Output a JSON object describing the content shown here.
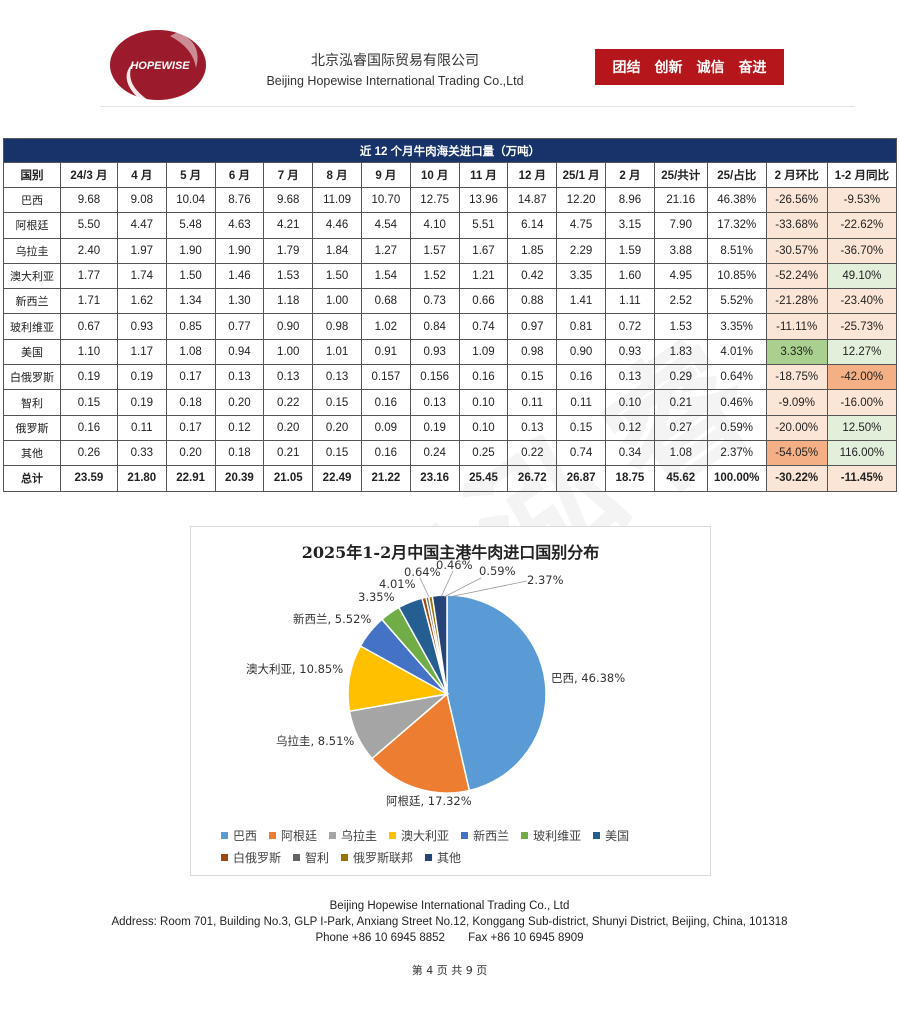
{
  "header": {
    "logo_text": "HOPEWISE",
    "company_cn": "北京泓睿国际贸易有限公司",
    "company_en": "Beijing Hopewise International Trading Co.,Ltd",
    "slogans": [
      "团结",
      "创新",
      "诚信",
      "奋进"
    ]
  },
  "table": {
    "title": "近 12 个月牛肉海关进口量（万吨）",
    "headers": [
      "国别",
      "24/3 月",
      "4 月",
      "5 月",
      "6 月",
      "7 月",
      "8 月",
      "9 月",
      "10 月",
      "11 月",
      "12 月",
      "25/1 月",
      "2 月",
      "25/共计",
      "25/占比",
      "2 月环比",
      "1-2 月同比"
    ],
    "rows": [
      {
        "name": "巴西",
        "values": [
          "9.68",
          "9.08",
          "10.04",
          "8.76",
          "9.68",
          "11.09",
          "10.70",
          "12.75",
          "13.96",
          "14.87",
          "12.20",
          "8.96",
          "21.16",
          "46.38%",
          "-26.56%",
          "-9.53%"
        ],
        "mom_color": "#fbe5d6",
        "yoy_color": "#fbe5d6"
      },
      {
        "name": "阿根廷",
        "values": [
          "5.50",
          "4.47",
          "5.48",
          "4.63",
          "4.21",
          "4.46",
          "4.54",
          "4.10",
          "5.51",
          "6.14",
          "4.75",
          "3.15",
          "7.90",
          "17.32%",
          "-33.68%",
          "-22.62%"
        ],
        "mom_color": "#fbe5d6",
        "yoy_color": "#fbe5d6"
      },
      {
        "name": "乌拉圭",
        "values": [
          "2.40",
          "1.97",
          "1.90",
          "1.90",
          "1.79",
          "1.84",
          "1.27",
          "1.57",
          "1.67",
          "1.85",
          "2.29",
          "1.59",
          "3.88",
          "8.51%",
          "-30.57%",
          "-36.70%"
        ],
        "mom_color": "#fbe5d6",
        "yoy_color": "#fbe5d6"
      },
      {
        "name": "澳大利亚",
        "values": [
          "1.77",
          "1.74",
          "1.50",
          "1.46",
          "1.53",
          "1.50",
          "1.54",
          "1.52",
          "1.21",
          "0.42",
          "3.35",
          "1.60",
          "4.95",
          "10.85%",
          "-52.24%",
          "49.10%"
        ],
        "mom_color": "#fbe5d6",
        "yoy_color": "#e2efda"
      },
      {
        "name": "新西兰",
        "values": [
          "1.71",
          "1.62",
          "1.34",
          "1.30",
          "1.18",
          "1.00",
          "0.68",
          "0.73",
          "0.66",
          "0.88",
          "1.41",
          "1.11",
          "2.52",
          "5.52%",
          "-21.28%",
          "-23.40%"
        ],
        "mom_color": "#fbe5d6",
        "yoy_color": "#fbe5d6"
      },
      {
        "name": "玻利维亚",
        "values": [
          "0.67",
          "0.93",
          "0.85",
          "0.77",
          "0.90",
          "0.98",
          "1.02",
          "0.84",
          "0.74",
          "0.97",
          "0.81",
          "0.72",
          "1.53",
          "3.35%",
          "-11.11%",
          "-25.73%"
        ],
        "mom_color": "#fbe5d6",
        "yoy_color": "#fbe5d6"
      },
      {
        "name": "美国",
        "values": [
          "1.10",
          "1.17",
          "1.08",
          "0.94",
          "1.00",
          "1.01",
          "0.91",
          "0.93",
          "1.09",
          "0.98",
          "0.90",
          "0.93",
          "1.83",
          "4.01%",
          "3.33%",
          "12.27%"
        ],
        "mom_color": "#a9d08e",
        "yoy_color": "#e2efda"
      },
      {
        "name": "白俄罗斯",
        "values": [
          "0.19",
          "0.19",
          "0.17",
          "0.13",
          "0.13",
          "0.13",
          "0.157",
          "0.156",
          "0.16",
          "0.15",
          "0.16",
          "0.13",
          "0.29",
          "0.64%",
          "-18.75%",
          "-42.00%"
        ],
        "mom_color": "#fbe5d6",
        "yoy_color": "#f4b084"
      },
      {
        "name": "智利",
        "values": [
          "0.15",
          "0.19",
          "0.18",
          "0.20",
          "0.22",
          "0.15",
          "0.16",
          "0.13",
          "0.10",
          "0.11",
          "0.11",
          "0.10",
          "0.21",
          "0.46%",
          "-9.09%",
          "-16.00%"
        ],
        "mom_color": "#fbe5d6",
        "yoy_color": "#fbe5d6"
      },
      {
        "name": "俄罗斯",
        "values": [
          "0.16",
          "0.11",
          "0.17",
          "0.12",
          "0.20",
          "0.20",
          "0.09",
          "0.19",
          "0.10",
          "0.13",
          "0.15",
          "0.12",
          "0.27",
          "0.59%",
          "-20.00%",
          "12.50%"
        ],
        "mom_color": "#fbe5d6",
        "yoy_color": "#e2efda"
      },
      {
        "name": "其他",
        "values": [
          "0.26",
          "0.33",
          "0.20",
          "0.18",
          "0.21",
          "0.15",
          "0.16",
          "0.24",
          "0.25",
          "0.22",
          "0.74",
          "0.34",
          "1.08",
          "2.37%",
          "-54.05%",
          "116.00%"
        ],
        "mom_color": "#f4b084",
        "yoy_color": "#e2efda"
      }
    ],
    "total": {
      "name": "总计",
      "values": [
        "23.59",
        "21.80",
        "22.91",
        "20.39",
        "21.05",
        "22.49",
        "21.22",
        "23.16",
        "25.45",
        "26.72",
        "26.87",
        "18.75",
        "45.62",
        "100.00%",
        "-30.22%",
        "-11.45%"
      ],
      "mom_color": "#fbe5d6",
      "yoy_color": "#fbe5d6"
    }
  },
  "chart_data": {
    "type": "pie",
    "title": "2025年1-2月中国主港牛肉进口国别分布",
    "categories": [
      "巴西",
      "阿根廷",
      "乌拉圭",
      "澳大利亚",
      "新西兰",
      "玻利维亚",
      "美国",
      "白俄罗斯",
      "智利",
      "俄罗斯联邦",
      "其他"
    ],
    "values": [
      46.38,
      17.32,
      8.51,
      10.85,
      5.52,
      3.35,
      4.01,
      0.64,
      0.46,
      0.59,
      2.37
    ],
    "labels": [
      "巴西, 46.38%",
      "阿根廷, 17.32%",
      "乌拉圭, 8.51%",
      "澳大利亚, 10.85%",
      "新西兰, 5.52%",
      "3.35%",
      "4.01%",
      "0.64%",
      "0.46%",
      "0.59%",
      "2.37%"
    ],
    "colors": [
      "#5b9bd5",
      "#ed7d31",
      "#a5a5a5",
      "#ffc000",
      "#4472c4",
      "#70ad47",
      "#255e91",
      "#9e480e",
      "#636363",
      "#997300",
      "#264478"
    ],
    "legend_position": "bottom"
  },
  "footer": {
    "company": "Beijing Hopewise International Trading Co., Ltd",
    "address": "Address: Room 701, Building No.3, GLP I-Park, Anxiang Street No.12, Konggang Sub-district, Shunyi District, Beijing, China, 101318",
    "phone": "Phone +86 10 6945 8852",
    "fax": "Fax +86 10 6945 8909",
    "page": "第 4 页 共 9 页"
  }
}
